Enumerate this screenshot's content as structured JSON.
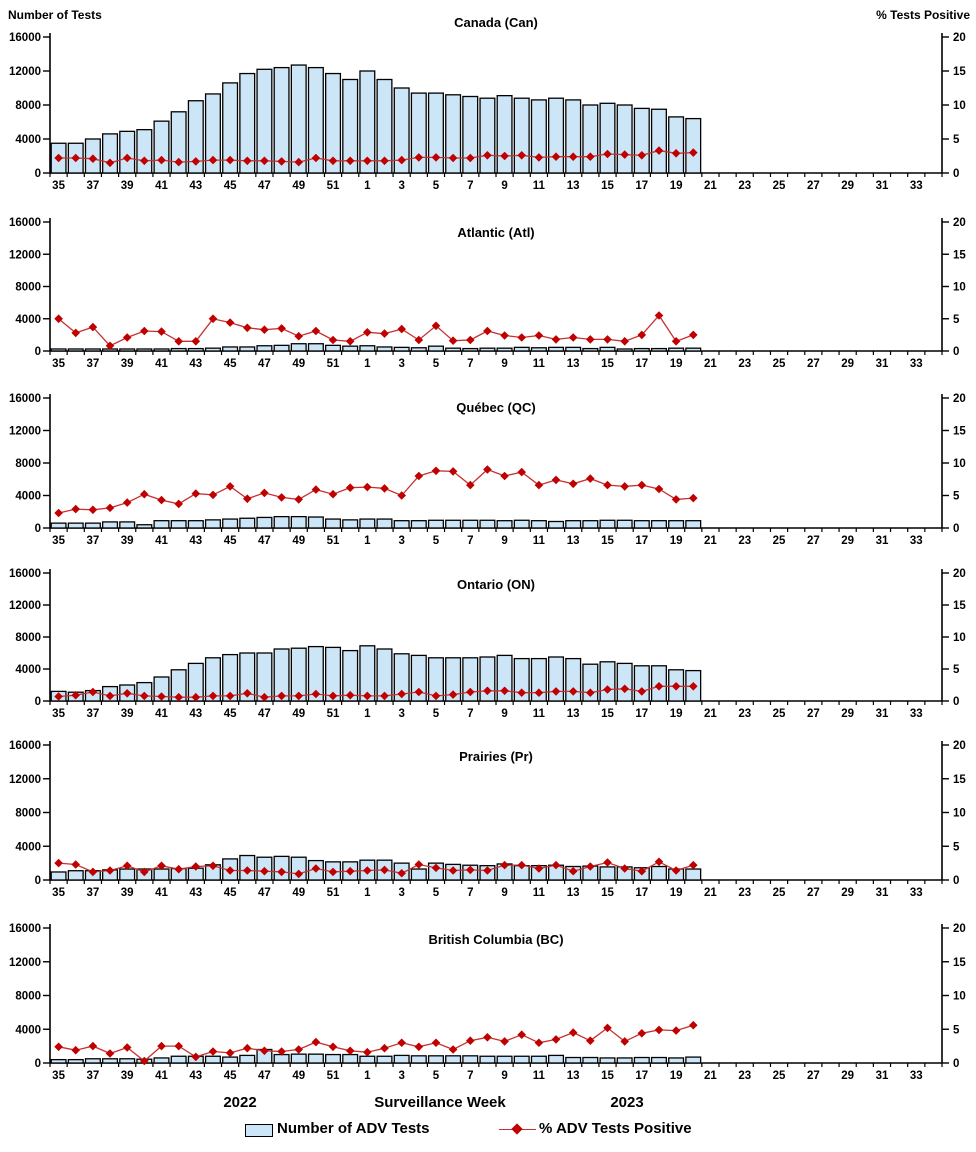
{
  "header": {
    "left_axis_title": "Number of Tests",
    "right_axis_title": "%  Tests Positive"
  },
  "footer": {
    "year_left": "2022",
    "axis_title": "Surveillance Week",
    "year_right": "2023"
  },
  "legend": {
    "bars_label": "Number of ADV Tests",
    "line_label": "% ADV Tests Positive"
  },
  "colors": {
    "bar_fill": "#CDE6F7",
    "bar_stroke": "#000000",
    "line": "#C83030",
    "marker": "#C00000",
    "axis": "#000000",
    "text": "#000000"
  },
  "chart_data": {
    "type": "bar+line",
    "x_axis": {
      "weeks": [
        35,
        36,
        37,
        38,
        39,
        40,
        41,
        42,
        43,
        44,
        45,
        46,
        47,
        48,
        49,
        50,
        51,
        52,
        1,
        2,
        3,
        4,
        5,
        6,
        7,
        8,
        9,
        10,
        11,
        12,
        13,
        14,
        15,
        16,
        17,
        18,
        19,
        20,
        21,
        22,
        23,
        24,
        25,
        26,
        27,
        28,
        29,
        30,
        31,
        32,
        33,
        34
      ],
      "label_every": 2
    },
    "y_left": {
      "min": 0,
      "max": 16000,
      "ticks": [
        0,
        4000,
        8000,
        12000,
        16000
      ]
    },
    "y_right": {
      "min": 0,
      "max": 20,
      "ticks": [
        0,
        5,
        10,
        15,
        20
      ]
    },
    "bars_series_name": "Number of ADV Tests",
    "line_series_name": "% ADV Tests Positive",
    "panels": [
      {
        "title": "Canada (Can)",
        "tests": [
          3500,
          3500,
          4000,
          4600,
          4900,
          5100,
          6100,
          7200,
          8500,
          9300,
          10600,
          11700,
          12200,
          12400,
          12700,
          12400,
          11700,
          11000,
          12000,
          11000,
          10000,
          9400,
          9400,
          9200,
          9000,
          8800,
          9100,
          8800,
          8600,
          8800,
          8600,
          8000,
          8200,
          8000,
          7600,
          7500,
          6600,
          6400
        ],
        "pct_positive": [
          2.2,
          2.2,
          2.1,
          1.5,
          2.2,
          1.8,
          1.9,
          1.6,
          1.7,
          1.9,
          1.9,
          1.8,
          1.8,
          1.7,
          1.6,
          2.2,
          1.8,
          1.8,
          1.8,
          1.8,
          1.9,
          2.3,
          2.3,
          2.2,
          2.2,
          2.6,
          2.5,
          2.6,
          2.3,
          2.4,
          2.4,
          2.4,
          2.8,
          2.7,
          2.6,
          3.3,
          2.9,
          3.0
        ]
      },
      {
        "title": "Atlantic (Atl)",
        "tests": [
          250,
          250,
          250,
          250,
          250,
          250,
          250,
          300,
          300,
          350,
          500,
          500,
          650,
          700,
          900,
          900,
          700,
          600,
          650,
          500,
          450,
          400,
          600,
          350,
          300,
          350,
          350,
          450,
          400,
          450,
          450,
          300,
          450,
          250,
          300,
          300,
          350,
          350
        ],
        "pct_positive": [
          5.0,
          2.8,
          3.7,
          0.8,
          2.1,
          3.1,
          3.0,
          1.5,
          1.5,
          5.0,
          4.4,
          3.6,
          3.3,
          3.5,
          2.3,
          3.1,
          1.7,
          1.5,
          2.9,
          2.7,
          3.4,
          1.7,
          3.9,
          1.6,
          1.7,
          3.1,
          2.4,
          2.1,
          2.4,
          1.8,
          2.1,
          1.8,
          1.8,
          1.5,
          2.5,
          5.5,
          1.5,
          2.5
        ]
      },
      {
        "title": "Québec (QC)",
        "tests": [
          600,
          600,
          600,
          750,
          750,
          400,
          900,
          900,
          900,
          1000,
          1100,
          1200,
          1300,
          1400,
          1400,
          1350,
          1100,
          1000,
          1100,
          1100,
          900,
          900,
          950,
          950,
          950,
          950,
          900,
          950,
          900,
          800,
          900,
          900,
          950,
          950,
          900,
          900,
          900,
          900
        ],
        "pct_positive": [
          2.3,
          2.9,
          2.8,
          3.1,
          3.9,
          5.2,
          4.3,
          3.7,
          5.3,
          5.1,
          6.4,
          4.5,
          5.4,
          4.7,
          4.4,
          5.9,
          5.2,
          6.2,
          6.3,
          6.1,
          5.0,
          8.0,
          8.8,
          8.7,
          6.6,
          9.0,
          8.0,
          8.6,
          6.6,
          7.4,
          6.8,
          7.6,
          6.6,
          6.4,
          6.6,
          6.0,
          4.4,
          4.6
        ]
      },
      {
        "title": "Ontario (ON)",
        "tests": [
          1200,
          1100,
          1300,
          1800,
          2000,
          2300,
          3000,
          3900,
          4700,
          5400,
          5800,
          6000,
          6000,
          6500,
          6600,
          6800,
          6700,
          6300,
          6900,
          6500,
          5900,
          5700,
          5400,
          5400,
          5400,
          5500,
          5700,
          5300,
          5300,
          5500,
          5300,
          4600,
          4900,
          4700,
          4400,
          4400,
          3900,
          3800
        ],
        "pct_positive": [
          0.7,
          0.9,
          1.4,
          0.8,
          1.2,
          0.8,
          0.7,
          0.6,
          0.6,
          0.8,
          0.8,
          1.2,
          0.6,
          0.8,
          0.8,
          1.1,
          0.8,
          0.9,
          0.8,
          0.8,
          1.1,
          1.4,
          0.8,
          1.0,
          1.4,
          1.6,
          1.6,
          1.3,
          1.3,
          1.5,
          1.5,
          1.3,
          1.8,
          1.9,
          1.5,
          2.3,
          2.3,
          2.3
        ]
      },
      {
        "title": "Prairies (Pr)",
        "tests": [
          950,
          1100,
          1100,
          1200,
          1300,
          1300,
          1300,
          1350,
          1400,
          1800,
          2500,
          2900,
          2700,
          2800,
          2700,
          2300,
          2150,
          2150,
          2350,
          2350,
          2000,
          1300,
          2000,
          1850,
          1750,
          1700,
          1900,
          1700,
          1700,
          1750,
          1600,
          1650,
          1550,
          1550,
          1450,
          1600,
          1300,
          1300
        ],
        "pct_positive": [
          2.5,
          2.3,
          1.2,
          1.4,
          2.1,
          1.2,
          2.1,
          1.6,
          2.0,
          2.1,
          1.4,
          1.4,
          1.3,
          1.2,
          0.9,
          1.7,
          1.2,
          1.3,
          1.4,
          1.5,
          1.0,
          2.3,
          1.8,
          1.4,
          1.5,
          1.4,
          2.2,
          2.2,
          1.7,
          2.2,
          1.3,
          2.0,
          2.6,
          1.7,
          1.3,
          2.7,
          1.4,
          2.2
        ]
      },
      {
        "title": "British Columbia (BC)",
        "tests": [
          400,
          400,
          500,
          500,
          500,
          450,
          600,
          800,
          800,
          800,
          700,
          900,
          1600,
          1000,
          1050,
          1050,
          1000,
          1000,
          800,
          800,
          900,
          850,
          850,
          850,
          850,
          800,
          800,
          800,
          800,
          900,
          650,
          650,
          600,
          600,
          650,
          650,
          600,
          700
        ],
        "pct_positive": [
          2.4,
          1.9,
          2.5,
          1.4,
          2.3,
          0.3,
          2.5,
          2.5,
          0.9,
          1.7,
          1.5,
          2.2,
          1.8,
          1.7,
          2.0,
          3.1,
          2.4,
          1.8,
          1.6,
          2.2,
          3.0,
          2.4,
          3.0,
          2.0,
          3.3,
          3.8,
          3.2,
          4.2,
          3.0,
          3.5,
          4.5,
          3.3,
          5.2,
          3.2,
          4.4,
          4.9,
          4.8,
          5.6
        ]
      }
    ]
  }
}
